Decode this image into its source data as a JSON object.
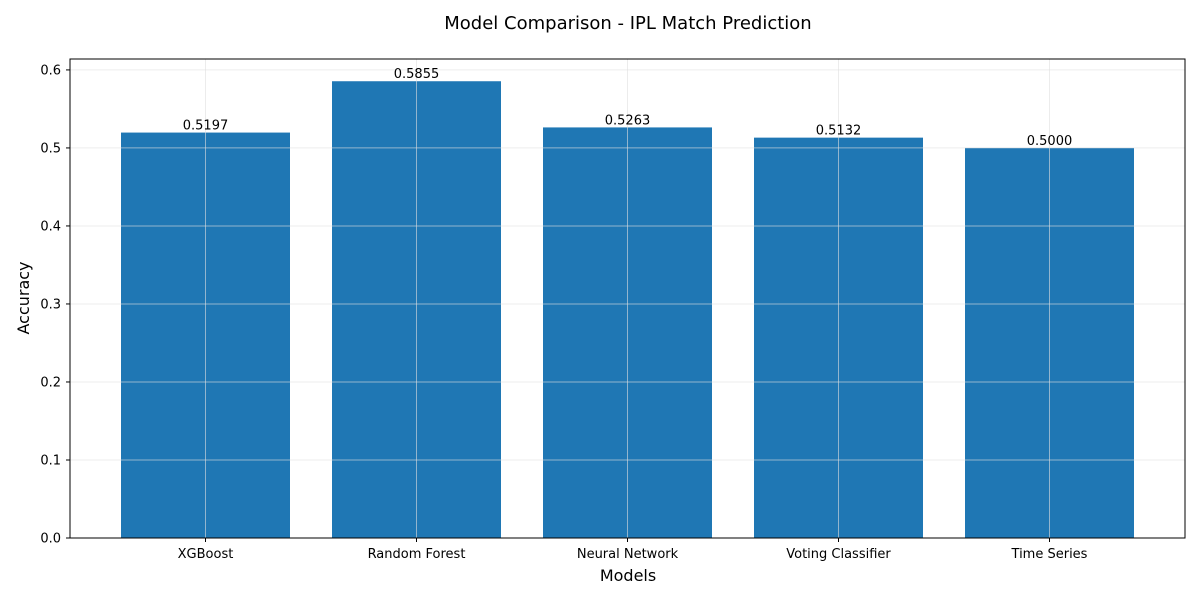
{
  "chart_data": {
    "type": "bar",
    "title": "Model Comparison - IPL Match Prediction",
    "xlabel": "Models",
    "ylabel": "Accuracy",
    "categories": [
      "XGBoost",
      "Random Forest",
      "Neural Network",
      "Voting Classifier",
      "Time Series"
    ],
    "values": [
      0.5197,
      0.5855,
      0.5263,
      0.5132,
      0.5
    ],
    "value_labels": [
      "0.5197",
      "0.5855",
      "0.5263",
      "0.5132",
      "0.5000"
    ],
    "ylim": [
      0,
      0.614
    ],
    "yticks": [
      0.0,
      0.1,
      0.2,
      0.3,
      0.4,
      0.5,
      0.6
    ],
    "ytick_labels": [
      "0.0",
      "0.1",
      "0.2",
      "0.3",
      "0.4",
      "0.5",
      "0.6"
    ],
    "grid": true,
    "bar_color": "#1f77b4",
    "grid_color": "#e0e0e0"
  }
}
